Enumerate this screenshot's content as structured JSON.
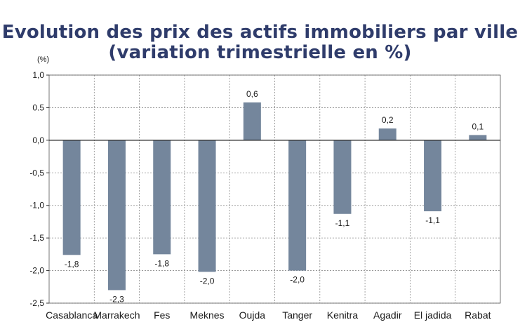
{
  "title_line1": "Evolution des prix des actifs immobiliers par ville",
  "title_line2": "(variation trimestrielle en %)",
  "chart_data": {
    "type": "bar",
    "title": "Evolution des prix des actifs immobiliers par ville (variation trimestrielle en %)",
    "ylabel": "(%)",
    "xlabel": "",
    "categories": [
      "Casablanca",
      "Marrakech",
      "Fes",
      "Meknes",
      "Oujda",
      "Tanger",
      "Kenitra",
      "Agadir",
      "El jadida",
      "Rabat"
    ],
    "values": [
      -1.76,
      -2.3,
      -1.75,
      -2.02,
      0.58,
      -2.0,
      -1.13,
      0.18,
      -1.09,
      0.08
    ],
    "data_labels": [
      "-1,8",
      "-2,3",
      "-1,8",
      "-2,0",
      "0,6",
      "-2,0",
      "-1,1",
      "0,2",
      "-1,1",
      "0,1"
    ],
    "ylim": [
      -2.5,
      1.0
    ],
    "yticks": [
      1.0,
      0.5,
      0.0,
      -0.5,
      -1.0,
      -1.5,
      -2.0,
      -2.5
    ],
    "ytick_labels": [
      "1,0",
      "0.5",
      "0,0",
      "-0,5",
      "-1,0",
      "-1,5",
      "-2,0",
      "-2,5"
    ],
    "grid": true,
    "bar_color": "#74869c",
    "grid_color": "#8c8c8c",
    "title_color": "#2f3c6b"
  }
}
